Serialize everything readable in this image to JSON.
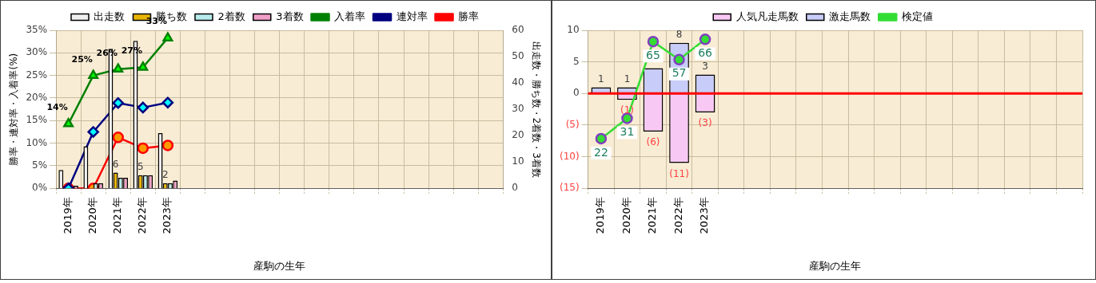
{
  "chart_data": [
    {
      "type": "bar",
      "xlabel": "産駒の生年",
      "ylabel": "勝率・連対率・入着率(%)",
      "y2label": "出走数・勝ち数・2着数・3着数",
      "categories": [
        "2019年",
        "2020年",
        "2021年",
        "2022年",
        "2023年",
        null,
        null,
        null,
        null,
        null,
        null,
        null,
        null,
        null,
        null,
        null,
        null,
        null
      ],
      "series": [
        {
          "name": "出走数",
          "axis": "y2",
          "color": "#f0f0f0",
          "values": [
            7,
            16,
            53,
            56,
            21,
            null,
            null,
            null,
            null,
            null,
            null,
            null,
            null,
            null,
            null,
            null,
            null,
            null
          ]
        },
        {
          "name": "勝ち数",
          "axis": "y2",
          "color": "#e8b400",
          "values": [
            0,
            0,
            6,
            5,
            2,
            null,
            null,
            null,
            null,
            null,
            null,
            null,
            null,
            null,
            null,
            null,
            null,
            null
          ],
          "value_labels": [
            null,
            null,
            "6",
            "5",
            "2",
            null,
            null,
            null,
            null,
            null,
            null,
            null,
            null,
            null,
            null,
            null,
            null,
            null
          ]
        },
        {
          "name": "2着数",
          "axis": "y2",
          "color": "#b8ecec",
          "values": [
            0,
            2,
            4,
            5,
            2,
            null,
            null,
            null,
            null,
            null,
            null,
            null,
            null,
            null,
            null,
            null,
            null,
            null
          ]
        },
        {
          "name": "3着数",
          "axis": "y2",
          "color": "#f0a0c8",
          "values": [
            1,
            2,
            4,
            5,
            3,
            null,
            null,
            null,
            null,
            null,
            null,
            null,
            null,
            null,
            null,
            null,
            null,
            null
          ]
        },
        {
          "name": "入着率",
          "type": "line",
          "marker": "triangle",
          "color": "#008000",
          "values": [
            14.3,
            25,
            26.4,
            26.8,
            33.3,
            null,
            null,
            null,
            null,
            null,
            null,
            null,
            null,
            null,
            null,
            null,
            null,
            null
          ],
          "value_labels": [
            "14%",
            "25%",
            "26%",
            "27%",
            "33%",
            null,
            null,
            null,
            null,
            null,
            null,
            null,
            null,
            null,
            null,
            null,
            null,
            null
          ]
        },
        {
          "name": "連対率",
          "type": "line",
          "marker": "diamond",
          "color": "#000080",
          "values": [
            0,
            12.5,
            18.9,
            17.9,
            19,
            null,
            null,
            null,
            null,
            null,
            null,
            null,
            null,
            null,
            null,
            null,
            null,
            null
          ]
        },
        {
          "name": "勝率",
          "type": "line",
          "marker": "circle",
          "color": "#ff0000",
          "values": [
            0,
            0,
            11.3,
            8.9,
            9.5,
            null,
            null,
            null,
            null,
            null,
            null,
            null,
            null,
            null,
            null,
            null,
            null,
            null
          ]
        }
      ],
      "ylim": [
        0,
        35
      ],
      "yticks": [
        {
          "value": 0,
          "label": "0%"
        },
        {
          "value": 5,
          "label": "5%"
        },
        {
          "value": 10,
          "label": "10%"
        },
        {
          "value": 15,
          "label": "15%"
        },
        {
          "value": 20,
          "label": "20%"
        },
        {
          "value": 25,
          "label": "25%"
        },
        {
          "value": 30,
          "label": "30%"
        },
        {
          "value": 35,
          "label": "35%"
        }
      ],
      "y2lim": [
        0,
        60
      ],
      "y2ticks": [
        0,
        10,
        20,
        30,
        40,
        50,
        60
      ],
      "grid": true,
      "legend": "top"
    },
    {
      "type": "bar",
      "xlabel": "産駒の生年",
      "stacked": true,
      "categories": [
        "2019年",
        "2020年",
        "2021年",
        "2022年",
        "2023年",
        null,
        null,
        null,
        null,
        null,
        null,
        null,
        null,
        null,
        null,
        null,
        null,
        null,
        null
      ],
      "series": [
        {
          "name": "人気凡走馬数",
          "color": "#f8c8f4",
          "values": [
            0,
            -1,
            -6,
            -11,
            -3,
            null,
            null,
            null,
            null,
            null,
            null,
            null,
            null,
            null,
            null,
            null,
            null,
            null,
            null
          ],
          "value_labels": [
            null,
            "(1)",
            "(6)",
            "(11)",
            "(3)",
            null,
            null,
            null,
            null,
            null,
            null,
            null,
            null,
            null,
            null,
            null,
            null,
            null,
            null
          ]
        },
        {
          "name": "激走馬数",
          "color": "#c8ccf8",
          "values": [
            1,
            1,
            4,
            8,
            3,
            null,
            null,
            null,
            null,
            null,
            null,
            null,
            null,
            null,
            null,
            null,
            null,
            null,
            null
          ],
          "value_labels": [
            "1",
            "1",
            null,
            "8",
            "3",
            null,
            null,
            null,
            null,
            null,
            null,
            null,
            null,
            null,
            null,
            null,
            null,
            null,
            null
          ]
        },
        {
          "name": "検定値",
          "type": "line",
          "axis": "y2",
          "marker": "circle",
          "color": "#33dd33",
          "values": [
            22,
            31,
            65,
            57,
            66,
            null,
            null,
            null,
            null,
            null,
            null,
            null,
            null,
            null,
            null,
            null,
            null,
            null,
            null
          ],
          "value_labels": [
            "22",
            "31",
            "65",
            "57",
            "66",
            null,
            null,
            null,
            null,
            null,
            null,
            null,
            null,
            null,
            null,
            null,
            null,
            null,
            null
          ]
        }
      ],
      "ylim": [
        -15,
        10
      ],
      "yticks": [
        {
          "value": -15,
          "label": "(15)"
        },
        {
          "value": -10,
          "label": "(10)"
        },
        {
          "value": -5,
          "label": "(5)"
        },
        0,
        5,
        10
      ],
      "y2lim": [
        0,
        70
      ],
      "tick_labels": "xy",
      "ref_lines": [
        {
          "axis": "y",
          "value": 0,
          "color": "#ff0000"
        }
      ],
      "grid": true,
      "legend": "top"
    }
  ]
}
